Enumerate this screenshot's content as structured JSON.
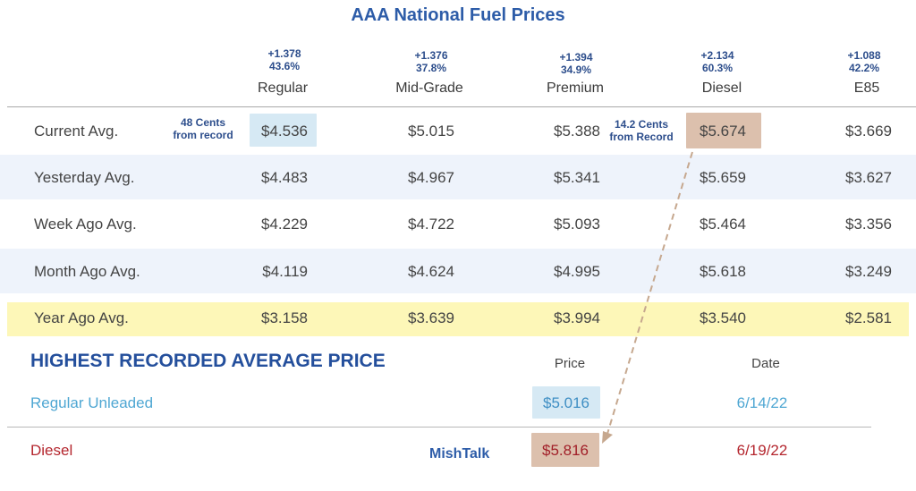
{
  "chart_data": {
    "type": "table",
    "title": "AAA National Fuel Prices",
    "columns": [
      {
        "name": "Regular",
        "change": "+1.378",
        "pct": "43.6%"
      },
      {
        "name": "Mid-Grade",
        "change": "+1.376",
        "pct": "37.8%"
      },
      {
        "name": "Premium",
        "change": "+1.394",
        "pct": "34.9%"
      },
      {
        "name": "Diesel",
        "change": "+2.134",
        "pct": "60.3%"
      },
      {
        "name": "E85",
        "change": "+1.088",
        "pct": "42.2%"
      }
    ],
    "rows": [
      {
        "label": "Current Avg.",
        "values": [
          "$4.536",
          "$5.015",
          "$5.388",
          "$5.674",
          "$3.669"
        ]
      },
      {
        "label": "Yesterday Avg.",
        "values": [
          "$4.483",
          "$4.967",
          "$5.341",
          "$5.659",
          "$3.627"
        ]
      },
      {
        "label": "Week Ago Avg.",
        "values": [
          "$4.229",
          "$4.722",
          "$5.093",
          "$5.464",
          "$3.356"
        ]
      },
      {
        "label": "Month Ago Avg.",
        "values": [
          "$4.119",
          "$4.624",
          "$4.995",
          "$5.618",
          "$3.249"
        ]
      },
      {
        "label": "Year Ago Avg.",
        "values": [
          "$3.158",
          "$3.639",
          "$3.994",
          "$3.540",
          "$2.581"
        ]
      }
    ],
    "notes": {
      "regular": {
        "line1": "48 Cents",
        "line2": "from record"
      },
      "diesel": {
        "line1": "14.2 Cents",
        "line2": "from Record"
      }
    },
    "record": {
      "heading": "HIGHEST RECORDED AVERAGE PRICE",
      "price_header": "Price",
      "date_header": "Date",
      "rows": [
        {
          "label": "Regular Unleaded",
          "price": "$5.016",
          "date": "6/14/22"
        },
        {
          "label": "Diesel",
          "price": "$5.816",
          "date": "6/19/22"
        }
      ]
    },
    "watermark": "MishTalk",
    "colors": {
      "title": "#2d5ca8",
      "band": "#eef3fb",
      "year_band": "#fdf7b8",
      "highlight_blue": "#d6e9f4",
      "highlight_tan": "#dcc0ad",
      "regular_record": "#4fa7d3",
      "diesel_record": "#b4262e",
      "arrow": "#c6a88f"
    }
  }
}
